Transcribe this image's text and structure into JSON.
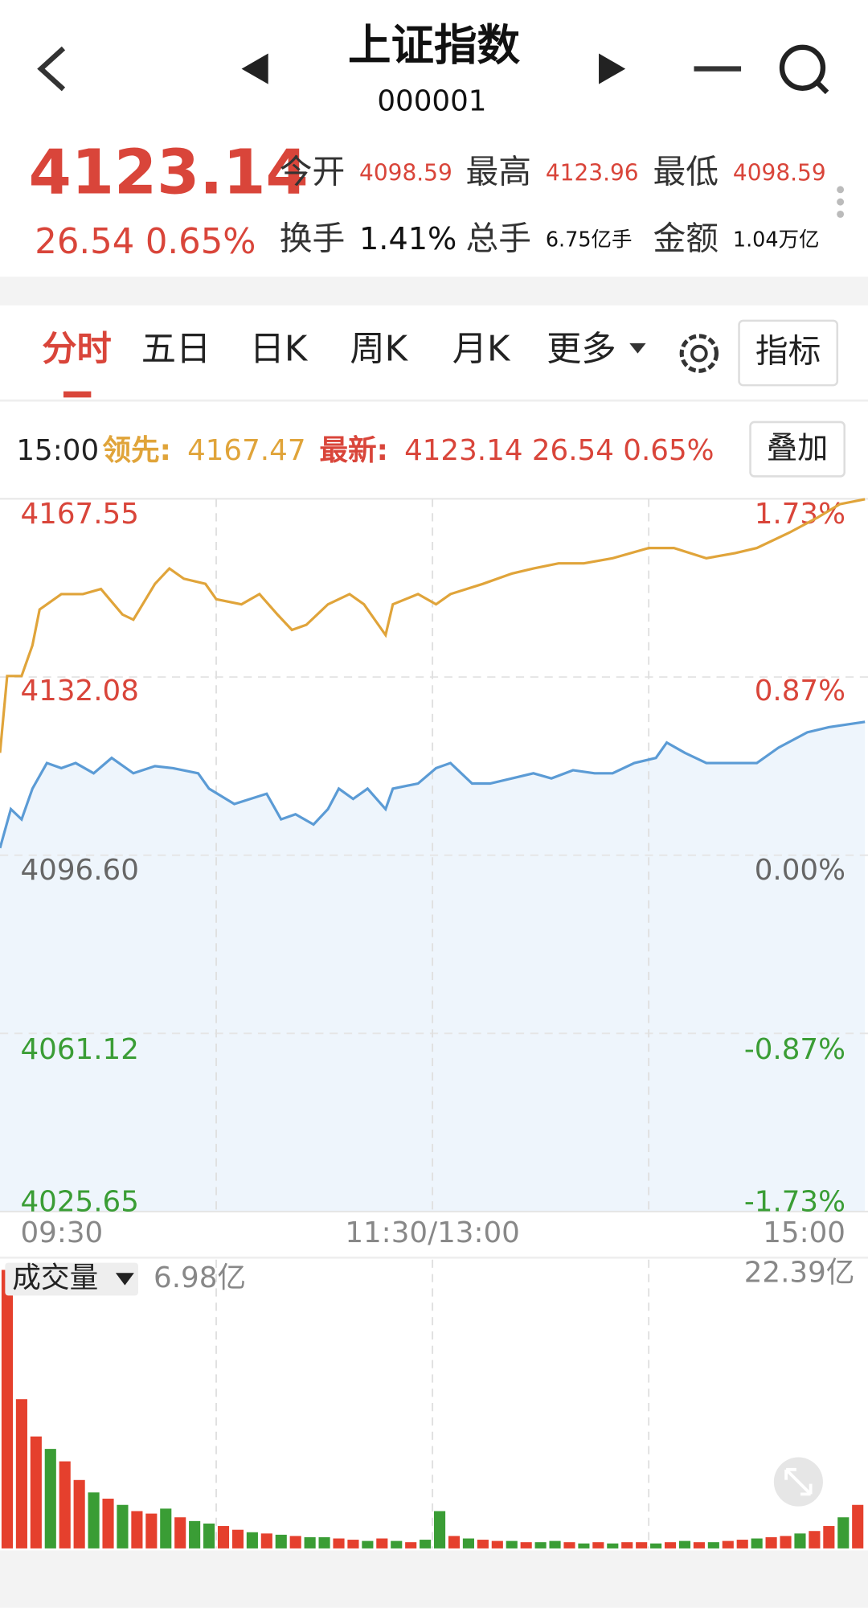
{
  "header": {
    "title": "上证指数",
    "code": "000001"
  },
  "quote": {
    "price": "4123.14",
    "change": "26.54",
    "change_pct": "0.65%",
    "stats": [
      {
        "label": "今开",
        "value": "4098.59"
      },
      {
        "label": "最高",
        "value": "4123.96"
      },
      {
        "label": "最低",
        "value": "4098.59"
      },
      {
        "label": "换手",
        "value": "1.41%"
      },
      {
        "label": "总手",
        "value": "6.75亿手"
      },
      {
        "label": "金额",
        "value": "1.04万亿"
      }
    ]
  },
  "tabs": [
    "分时",
    "五日",
    "日K",
    "周K",
    "月K",
    "更多"
  ],
  "indicator_button": "指标",
  "info_bar": {
    "time": "15:00",
    "lead_label": "领先:",
    "lead_value": "4167.47",
    "latest_label": "最新:",
    "latest_value": "4123.14 26.54 0.65%",
    "overlay_button": "叠加"
  },
  "chart_data": {
    "type": "line",
    "xlim": [
      0,
      240
    ],
    "xticks": [
      {
        "value": 0,
        "label": "09:30"
      },
      {
        "value": 120,
        "label": "11:30/13:00"
      },
      {
        "value": 240,
        "label": "15:00"
      }
    ],
    "ylim": [
      4025.65,
      4167.55
    ],
    "yticks": [
      4167.55,
      4132.08,
      {
        "value": 4096.6,
        "label": "4096.60"
      },
      4061.12,
      4025.65
    ],
    "y2lim": [
      -1.73,
      1.73
    ],
    "y2ticks": [
      {
        "value": 1.73,
        "label": "1.73%"
      },
      {
        "value": 0.87,
        "label": "0.87%"
      },
      {
        "value": 0,
        "label": "0.00%"
      },
      {
        "value": -0.87,
        "label": "-0.87%"
      },
      {
        "value": -1.73,
        "label": "-1.73%"
      }
    ],
    "grid": true,
    "up_color": "#d9453a",
    "down_color": "#3a9d35",
    "flat_color": "#666666",
    "series": [
      {
        "color": "#e0a43a",
        "x": [
          0,
          2,
          6,
          9,
          11,
          17,
          23,
          28,
          34,
          37,
          43,
          47,
          51,
          57,
          60,
          67,
          72,
          77,
          81,
          85,
          91,
          97,
          101,
          107,
          109,
          116,
          121,
          125,
          134,
          142,
          148,
          155,
          162,
          170,
          180,
          187,
          196,
          204,
          210,
          219,
          227,
          233,
          240
        ],
        "values": [
          4116.99,
          4132.28,
          4132.28,
          4138.39,
          4145.53,
          4148.59,
          4148.59,
          4149.61,
          4144.51,
          4143.49,
          4150.63,
          4153.68,
          4151.65,
          4150.63,
          4147.57,
          4146.55,
          4148.59,
          4144.51,
          4141.45,
          4142.47,
          4146.55,
          4148.59,
          4146.55,
          4140.43,
          4146.55,
          4148.59,
          4146.55,
          4148.59,
          4150.63,
          4152.66,
          4153.68,
          4154.7,
          4154.7,
          4155.72,
          4157.76,
          4157.76,
          4155.72,
          4156.74,
          4157.76,
          4160.82,
          4163.88,
          4166.5,
          4167.47
        ]
      },
      {
        "color": "#5b9bd5",
        "fill": "#eef5fc",
        "x": [
          0,
          3,
          6,
          9,
          13,
          17,
          21,
          26,
          31,
          37,
          43,
          48,
          55,
          58,
          65,
          74,
          78,
          82,
          87,
          91,
          94,
          98,
          102,
          107,
          109,
          116,
          121,
          125,
          131,
          136,
          142,
          148,
          153,
          159,
          165,
          170,
          176,
          182,
          185,
          190,
          196,
          202,
          210,
          216,
          224,
          230,
          240
        ],
        "values": [
          4098.03,
          4105.77,
          4103.74,
          4109.85,
          4114.95,
          4113.93,
          4114.95,
          4112.91,
          4115.97,
          4112.91,
          4114.34,
          4113.93,
          4112.91,
          4109.85,
          4106.79,
          4108.83,
          4103.74,
          4104.75,
          4102.72,
          4105.77,
          4109.85,
          4107.81,
          4109.85,
          4105.77,
          4109.85,
          4110.87,
          4113.93,
          4114.95,
          4110.87,
          4110.87,
          4111.89,
          4112.91,
          4111.89,
          4113.52,
          4112.91,
          4112.91,
          4114.95,
          4115.97,
          4119.03,
          4116.99,
          4114.95,
          4114.95,
          4114.95,
          4118.01,
          4121.06,
          4122.08,
          4123.14
        ]
      }
    ]
  },
  "volume": {
    "type": "bar",
    "label": "成交量",
    "current_label": "6.98亿",
    "max_label": "22.39亿",
    "ylim": [
      0,
      22.39
    ],
    "values": [
      22.39,
      12,
      9,
      8,
      7,
      5.5,
      4.5,
      4,
      3.5,
      3,
      2.8,
      3.2,
      2.5,
      2.2,
      2,
      1.8,
      1.5,
      1.3,
      1.2,
      1.1,
      1,
      0.9,
      0.9,
      0.8,
      0.7,
      0.6,
      0.8,
      0.6,
      0.5,
      0.7,
      3,
      1,
      0.8,
      0.7,
      0.6,
      0.6,
      0.5,
      0.5,
      0.6,
      0.5,
      0.4,
      0.5,
      0.4,
      0.5,
      0.5,
      0.4,
      0.5,
      0.6,
      0.5,
      0.5,
      0.6,
      0.7,
      0.8,
      0.9,
      1,
      1.2,
      1.4,
      1.8,
      2.5,
      3.5
    ],
    "colors": [
      "#e5402d",
      "#e5402d",
      "#e5402d",
      "#3a9d35",
      "#e5402d",
      "#e5402d",
      "#3a9d35",
      "#e5402d",
      "#3a9d35",
      "#e5402d",
      "#e5402d",
      "#3a9d35",
      "#e5402d",
      "#3a9d35",
      "#3a9d35",
      "#e5402d",
      "#e5402d",
      "#3a9d35",
      "#e5402d",
      "#3a9d35",
      "#e5402d",
      "#3a9d35",
      "#3a9d35",
      "#e5402d",
      "#e5402d",
      "#3a9d35",
      "#e5402d",
      "#3a9d35",
      "#e5402d",
      "#3a9d35",
      "#3a9d35",
      "#e5402d",
      "#3a9d35",
      "#e5402d",
      "#e5402d",
      "#3a9d35",
      "#e5402d",
      "#3a9d35",
      "#3a9d35",
      "#e5402d",
      "#3a9d35",
      "#e5402d",
      "#3a9d35",
      "#e5402d",
      "#e5402d",
      "#3a9d35",
      "#e5402d",
      "#3a9d35",
      "#e5402d",
      "#3a9d35",
      "#e5402d",
      "#e5402d",
      "#3a9d35",
      "#e5402d",
      "#e5402d",
      "#3a9d35",
      "#e5402d",
      "#e5402d",
      "#3a9d35",
      "#e5402d"
    ]
  }
}
